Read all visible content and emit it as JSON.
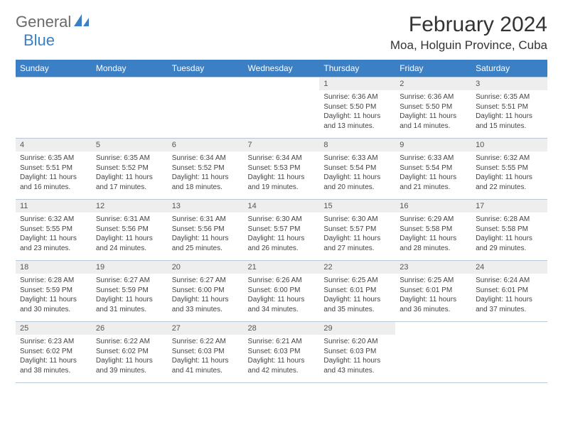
{
  "logo": {
    "text_gray": "General",
    "text_blue": "Blue"
  },
  "title": "February 2024",
  "location": "Moa, Holguin Province, Cuba",
  "colors": {
    "header_bg": "#3b7fc4",
    "header_fg": "#ffffff",
    "daynum_bg": "#eeeeee",
    "grid_line": "#b8c8d8",
    "logo_gray": "#6a6a6a",
    "logo_blue": "#3b7fc4",
    "body_text": "#444444"
  },
  "typography": {
    "title_fontsize": 30,
    "location_fontsize": 17,
    "weekday_fontsize": 12,
    "daynum_fontsize": 11,
    "body_fontsize": 10
  },
  "weekdays": [
    "Sunday",
    "Monday",
    "Tuesday",
    "Wednesday",
    "Thursday",
    "Friday",
    "Saturday"
  ],
  "calendar": {
    "type": "table",
    "first_weekday_index": 4,
    "days": [
      {
        "n": 1,
        "sunrise": "6:36 AM",
        "sunset": "5:50 PM",
        "daylight": "11 hours and 13 minutes."
      },
      {
        "n": 2,
        "sunrise": "6:36 AM",
        "sunset": "5:50 PM",
        "daylight": "11 hours and 14 minutes."
      },
      {
        "n": 3,
        "sunrise": "6:35 AM",
        "sunset": "5:51 PM",
        "daylight": "11 hours and 15 minutes."
      },
      {
        "n": 4,
        "sunrise": "6:35 AM",
        "sunset": "5:51 PM",
        "daylight": "11 hours and 16 minutes."
      },
      {
        "n": 5,
        "sunrise": "6:35 AM",
        "sunset": "5:52 PM",
        "daylight": "11 hours and 17 minutes."
      },
      {
        "n": 6,
        "sunrise": "6:34 AM",
        "sunset": "5:52 PM",
        "daylight": "11 hours and 18 minutes."
      },
      {
        "n": 7,
        "sunrise": "6:34 AM",
        "sunset": "5:53 PM",
        "daylight": "11 hours and 19 minutes."
      },
      {
        "n": 8,
        "sunrise": "6:33 AM",
        "sunset": "5:54 PM",
        "daylight": "11 hours and 20 minutes."
      },
      {
        "n": 9,
        "sunrise": "6:33 AM",
        "sunset": "5:54 PM",
        "daylight": "11 hours and 21 minutes."
      },
      {
        "n": 10,
        "sunrise": "6:32 AM",
        "sunset": "5:55 PM",
        "daylight": "11 hours and 22 minutes."
      },
      {
        "n": 11,
        "sunrise": "6:32 AM",
        "sunset": "5:55 PM",
        "daylight": "11 hours and 23 minutes."
      },
      {
        "n": 12,
        "sunrise": "6:31 AM",
        "sunset": "5:56 PM",
        "daylight": "11 hours and 24 minutes."
      },
      {
        "n": 13,
        "sunrise": "6:31 AM",
        "sunset": "5:56 PM",
        "daylight": "11 hours and 25 minutes."
      },
      {
        "n": 14,
        "sunrise": "6:30 AM",
        "sunset": "5:57 PM",
        "daylight": "11 hours and 26 minutes."
      },
      {
        "n": 15,
        "sunrise": "6:30 AM",
        "sunset": "5:57 PM",
        "daylight": "11 hours and 27 minutes."
      },
      {
        "n": 16,
        "sunrise": "6:29 AM",
        "sunset": "5:58 PM",
        "daylight": "11 hours and 28 minutes."
      },
      {
        "n": 17,
        "sunrise": "6:28 AM",
        "sunset": "5:58 PM",
        "daylight": "11 hours and 29 minutes."
      },
      {
        "n": 18,
        "sunrise": "6:28 AM",
        "sunset": "5:59 PM",
        "daylight": "11 hours and 30 minutes."
      },
      {
        "n": 19,
        "sunrise": "6:27 AM",
        "sunset": "5:59 PM",
        "daylight": "11 hours and 31 minutes."
      },
      {
        "n": 20,
        "sunrise": "6:27 AM",
        "sunset": "6:00 PM",
        "daylight": "11 hours and 33 minutes."
      },
      {
        "n": 21,
        "sunrise": "6:26 AM",
        "sunset": "6:00 PM",
        "daylight": "11 hours and 34 minutes."
      },
      {
        "n": 22,
        "sunrise": "6:25 AM",
        "sunset": "6:01 PM",
        "daylight": "11 hours and 35 minutes."
      },
      {
        "n": 23,
        "sunrise": "6:25 AM",
        "sunset": "6:01 PM",
        "daylight": "11 hours and 36 minutes."
      },
      {
        "n": 24,
        "sunrise": "6:24 AM",
        "sunset": "6:01 PM",
        "daylight": "11 hours and 37 minutes."
      },
      {
        "n": 25,
        "sunrise": "6:23 AM",
        "sunset": "6:02 PM",
        "daylight": "11 hours and 38 minutes."
      },
      {
        "n": 26,
        "sunrise": "6:22 AM",
        "sunset": "6:02 PM",
        "daylight": "11 hours and 39 minutes."
      },
      {
        "n": 27,
        "sunrise": "6:22 AM",
        "sunset": "6:03 PM",
        "daylight": "11 hours and 41 minutes."
      },
      {
        "n": 28,
        "sunrise": "6:21 AM",
        "sunset": "6:03 PM",
        "daylight": "11 hours and 42 minutes."
      },
      {
        "n": 29,
        "sunrise": "6:20 AM",
        "sunset": "6:03 PM",
        "daylight": "11 hours and 43 minutes."
      }
    ]
  },
  "labels": {
    "sunrise": "Sunrise:",
    "sunset": "Sunset:",
    "daylight": "Daylight:"
  }
}
